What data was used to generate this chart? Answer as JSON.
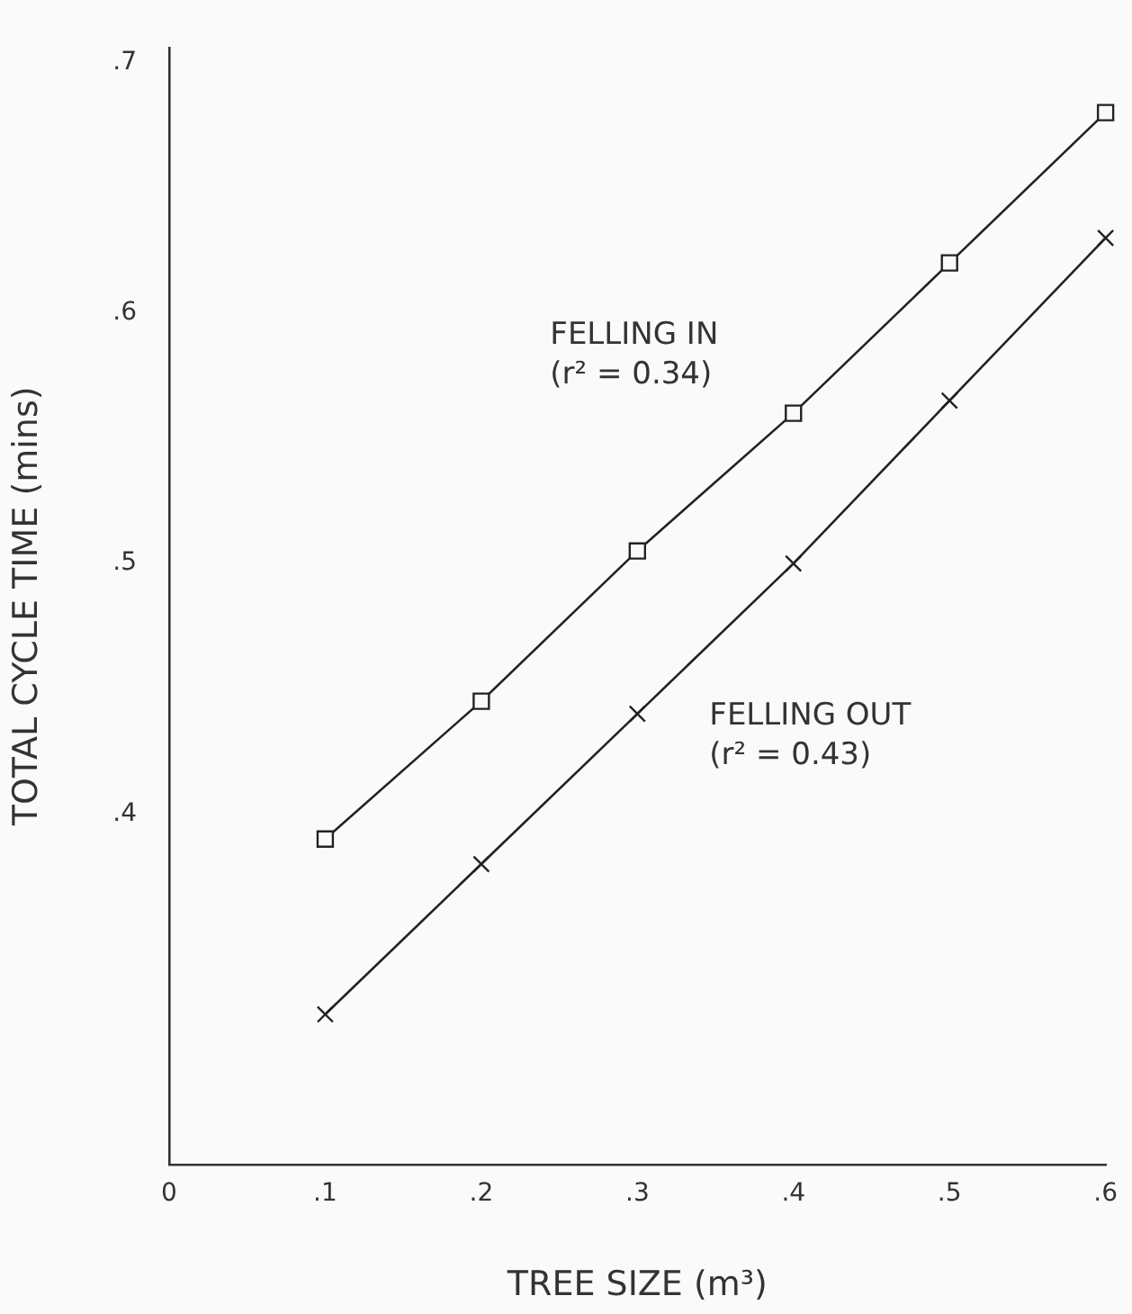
{
  "chart_data": {
    "type": "line",
    "xlabel": "TREE SIZE (m³)",
    "ylabel": "TOTAL CYCLE TIME (mins)",
    "x": [
      0.1,
      0.2,
      0.3,
      0.4,
      0.5,
      0.6
    ],
    "series": [
      {
        "name": "FELLING IN",
        "color": "#222222",
        "marker": "square",
        "values": [
          0.39,
          0.445,
          0.505,
          0.56,
          0.62,
          0.68
        ]
      },
      {
        "name": "FELLING OUT",
        "color": "#222222",
        "marker": "cross",
        "values": [
          0.32,
          0.38,
          0.44,
          0.5,
          0.565,
          0.63
        ]
      }
    ],
    "annotations": [
      "(r² = 0.34)",
      "(r² = 0.43)"
    ],
    "xlim": [
      0,
      0.6
    ],
    "xticks": [
      0,
      {
        "value": 0.1,
        "label": ".1"
      },
      {
        "value": 0.2,
        "label": ".2"
      },
      {
        "value": 0.3,
        "label": ".3"
      },
      {
        "value": 0.4,
        "label": ".4"
      },
      {
        "value": 0.5,
        "label": ".5"
      },
      {
        "value": 0.6,
        "label": ".6"
      }
    ],
    "ylim": [
      0.26,
      0.706
    ],
    "yticks": [
      {
        "value": 0.4,
        "label": ".4"
      },
      {
        "value": 0.5,
        "label": ".5"
      },
      {
        "value": 0.6,
        "label": ".6"
      },
      {
        "value": 0.7,
        "label": ".7"
      }
    ],
    "grid": false,
    "legend": false,
    "line_style": "solid"
  }
}
